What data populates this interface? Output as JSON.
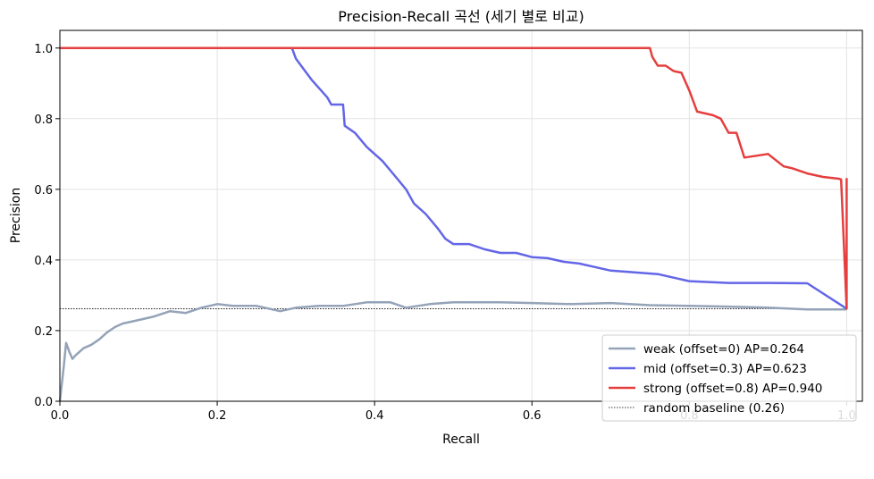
{
  "chart_data": {
    "type": "line",
    "title": "Precision-Recall 곡선 (세기 별로 비교)",
    "xlabel": "Recall",
    "ylabel": "Precision",
    "xlim": [
      0,
      1.02
    ],
    "ylim": [
      0,
      1.05
    ],
    "xticks": [
      0.0,
      0.2,
      0.4,
      0.6,
      0.8,
      1.0
    ],
    "yticks": [
      0.0,
      0.2,
      0.4,
      0.6,
      0.8,
      1.0
    ],
    "xtick_labels": [
      "0.0",
      "0.2",
      "0.4",
      "0.6",
      "0.8",
      "1.0"
    ],
    "ytick_labels": [
      "0.0",
      "0.2",
      "0.4",
      "0.6",
      "0.8",
      "1.0"
    ],
    "grid": true,
    "legend_position": "bottom-right",
    "series": [
      {
        "name": "weak (offset=0)  AP=0.264",
        "color": "#94a3b8",
        "x": [
          0,
          0.005,
          0.008,
          0.012,
          0.016,
          0.02,
          0.03,
          0.04,
          0.05,
          0.06,
          0.07,
          0.08,
          0.09,
          0.1,
          0.12,
          0.14,
          0.16,
          0.18,
          0.2,
          0.22,
          0.25,
          0.28,
          0.3,
          0.33,
          0.36,
          0.39,
          0.42,
          0.44,
          0.47,
          0.5,
          0.53,
          0.56,
          0.6,
          0.65,
          0.7,
          0.75,
          0.8,
          0.85,
          0.9,
          0.95,
          1.0
        ],
        "y": [
          0,
          0.1,
          0.165,
          0.14,
          0.12,
          0.13,
          0.15,
          0.16,
          0.175,
          0.195,
          0.21,
          0.22,
          0.225,
          0.23,
          0.24,
          0.255,
          0.25,
          0.265,
          0.275,
          0.27,
          0.27,
          0.255,
          0.265,
          0.27,
          0.27,
          0.28,
          0.28,
          0.265,
          0.275,
          0.28,
          0.28,
          0.28,
          0.278,
          0.275,
          0.278,
          0.272,
          0.27,
          0.268,
          0.265,
          0.26,
          0.26
        ]
      },
      {
        "name": "mid (offset=0.3)  AP=0.623",
        "color": "#6366e6",
        "x": [
          0,
          0.295,
          0.3,
          0.31,
          0.32,
          0.33,
          0.34,
          0.345,
          0.36,
          0.362,
          0.375,
          0.39,
          0.41,
          0.425,
          0.44,
          0.45,
          0.465,
          0.48,
          0.49,
          0.5,
          0.52,
          0.54,
          0.56,
          0.58,
          0.6,
          0.62,
          0.64,
          0.66,
          0.68,
          0.7,
          0.73,
          0.76,
          0.78,
          0.8,
          0.85,
          0.9,
          0.95,
          1.0
        ],
        "y": [
          1.0,
          1.0,
          0.97,
          0.94,
          0.91,
          0.885,
          0.86,
          0.84,
          0.84,
          0.78,
          0.76,
          0.72,
          0.68,
          0.64,
          0.6,
          0.56,
          0.53,
          0.49,
          0.46,
          0.445,
          0.445,
          0.43,
          0.42,
          0.42,
          0.408,
          0.405,
          0.395,
          0.39,
          0.38,
          0.37,
          0.365,
          0.36,
          0.35,
          0.34,
          0.335,
          0.335,
          0.334,
          0.262
        ]
      },
      {
        "name": "strong (offset=0.8)  AP=0.940",
        "color": "#e53e3e",
        "x": [
          0,
          0.75,
          0.753,
          0.76,
          0.77,
          0.78,
          0.79,
          0.8,
          0.81,
          0.82,
          0.83,
          0.84,
          0.85,
          0.86,
          0.87,
          0.9,
          0.92,
          0.93,
          0.95,
          0.97,
          0.99,
          0.993,
          1.0,
          1.0
        ],
        "y": [
          1.0,
          1.0,
          0.975,
          0.95,
          0.95,
          0.935,
          0.93,
          0.88,
          0.82,
          0.815,
          0.81,
          0.8,
          0.76,
          0.76,
          0.69,
          0.7,
          0.665,
          0.66,
          0.645,
          0.635,
          0.63,
          0.628,
          0.262,
          0.632
        ]
      }
    ],
    "baseline": {
      "name": "random baseline (0.26)",
      "value": 0.262,
      "color": "#000000"
    }
  }
}
